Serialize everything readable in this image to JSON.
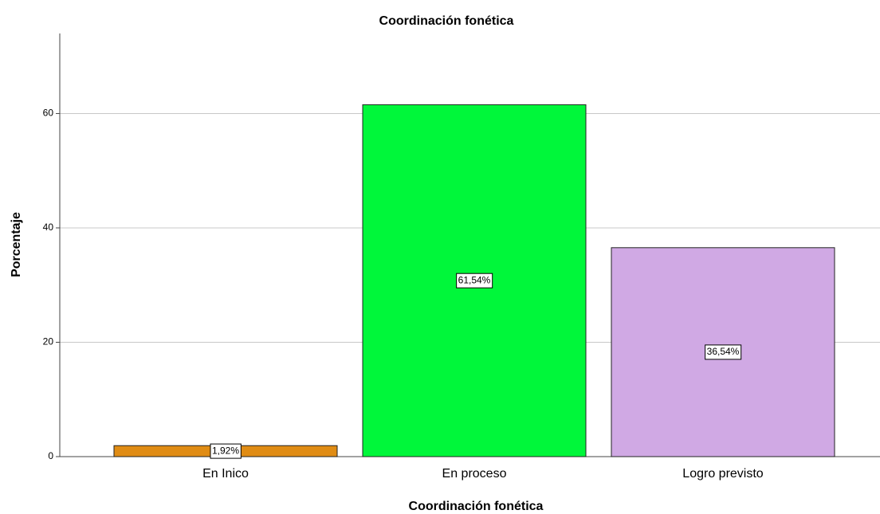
{
  "chart_data": {
    "type": "bar",
    "title": "Coordinación fonética",
    "x_label": "Coordinación fonética",
    "y_label": "Porcentaje",
    "categories": [
      "En Inico",
      "En proceso",
      "Logro previsto"
    ],
    "values": [
      1.92,
      61.54,
      36.54
    ],
    "value_labels": [
      "1,92%",
      "61,54%",
      "36,54%"
    ],
    "colors": [
      "#e08c14",
      "#00f73a",
      "#d0a9e4"
    ],
    "ylim": [
      0,
      74
    ],
    "yticks": [
      0,
      20,
      40,
      60
    ],
    "grid": true
  }
}
